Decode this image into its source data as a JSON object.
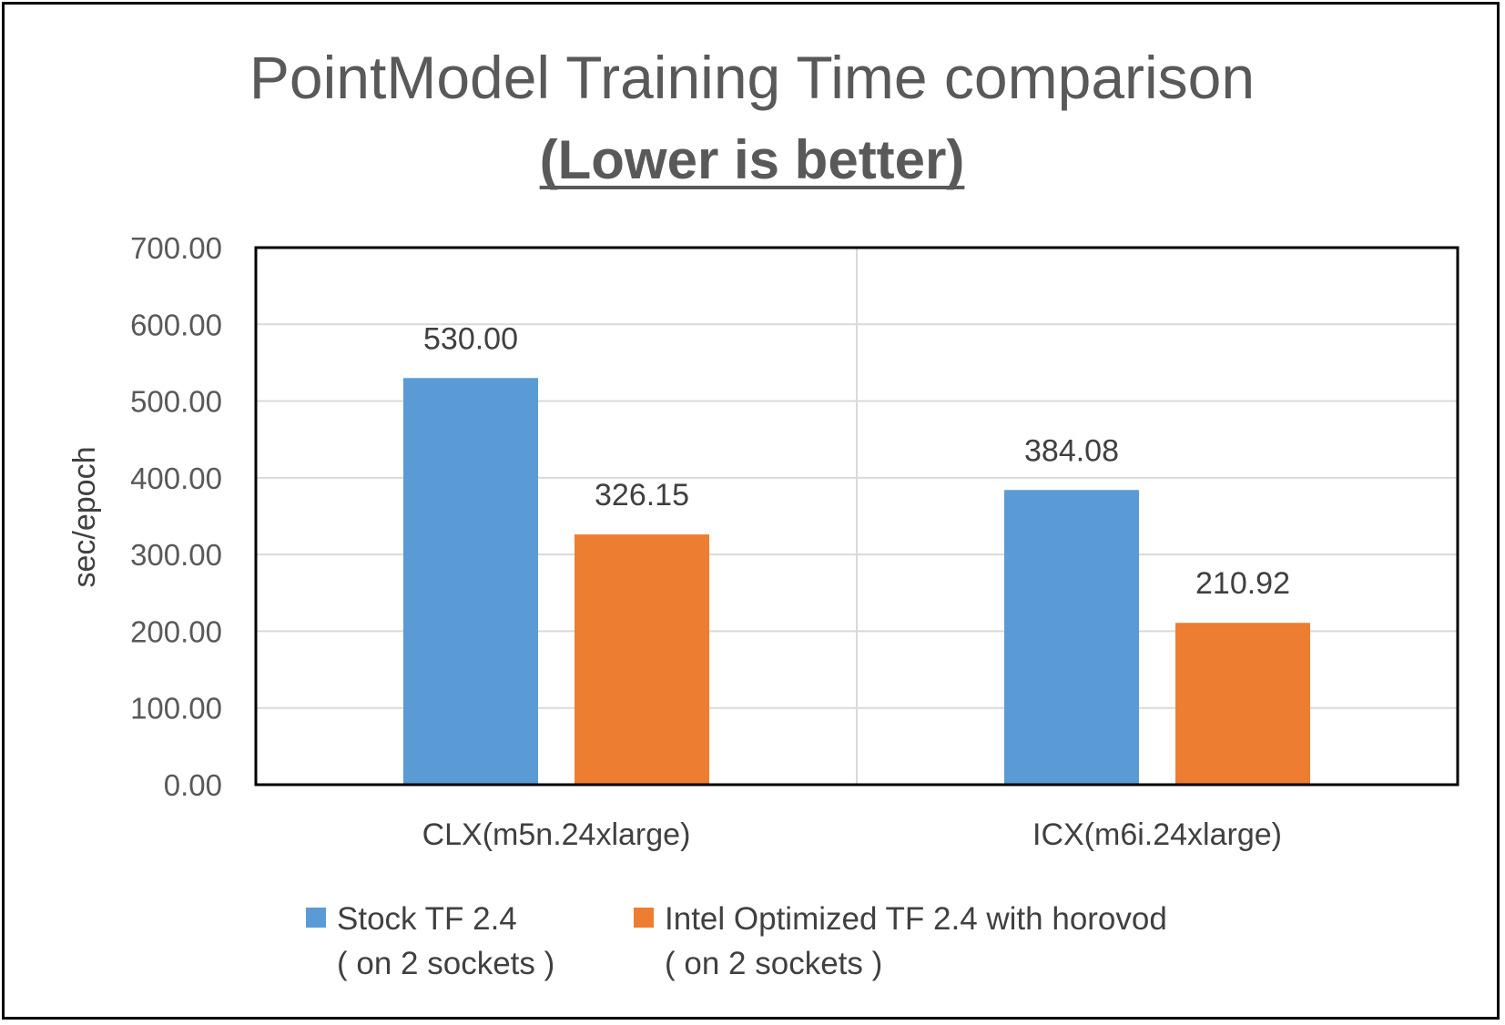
{
  "chart_data": {
    "type": "bar",
    "title": "PointModel Training Time comparison",
    "subtitle": "(Lower is better)",
    "ylabel": "sec/epoch",
    "xlabel": "",
    "ylim": [
      0,
      700
    ],
    "yticks": [
      "0.00",
      "100.00",
      "200.00",
      "300.00",
      "400.00",
      "500.00",
      "600.00",
      "700.00"
    ],
    "categories": [
      "CLX(m5n.24xlarge)",
      "ICX(m6i.24xlarge)"
    ],
    "series": [
      {
        "name": "Stock TF 2.4",
        "name_line2": "( on 2 sockets )",
        "color": "#5B9BD5",
        "values": [
          530.0,
          384.08
        ],
        "labels": [
          "530.00",
          "384.08"
        ]
      },
      {
        "name": "Intel Optimized TF 2.4 with horovod",
        "name_line2": "( on 2 sockets )",
        "color": "#ED7D31",
        "values": [
          326.15,
          210.92
        ],
        "labels": [
          "326.15",
          "210.92"
        ]
      }
    ],
    "grid": true,
    "legend_position": "bottom"
  }
}
